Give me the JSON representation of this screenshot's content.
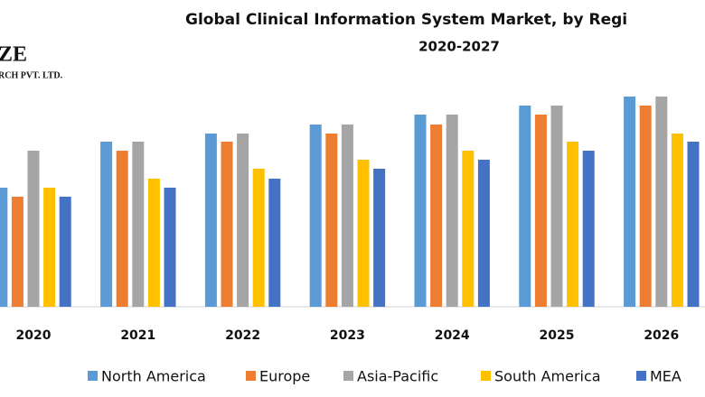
{
  "chart_data": {
    "type": "bar",
    "title": "Global Clinical Information System Market, by Regi",
    "subtitle": "2020-2027",
    "annotations": [
      "ZE",
      "RCH PVT. LTD."
    ],
    "categories": [
      "2020",
      "2021",
      "2022",
      "2023",
      "2024",
      "2025",
      "2026"
    ],
    "series": [
      {
        "name": "North America",
        "color": "#5b9bd5",
        "values": [
          132,
          183,
          192,
          202,
          213,
          223,
          233
        ]
      },
      {
        "name": "Europe",
        "color": "#ed7d31",
        "values": [
          122,
          173,
          183,
          192,
          202,
          213,
          223
        ]
      },
      {
        "name": "Asia-Pacific",
        "color": "#a5a5a5",
        "values": [
          173,
          183,
          192,
          202,
          213,
          223,
          233
        ]
      },
      {
        "name": "South America",
        "color": "#ffc000",
        "values": [
          132,
          142,
          153,
          163,
          173,
          183,
          192
        ]
      },
      {
        "name": "MEA",
        "color": "#4472c4",
        "values": [
          122,
          132,
          142,
          153,
          163,
          173,
          183
        ]
      }
    ],
    "ylim": [
      0,
      240
    ]
  }
}
